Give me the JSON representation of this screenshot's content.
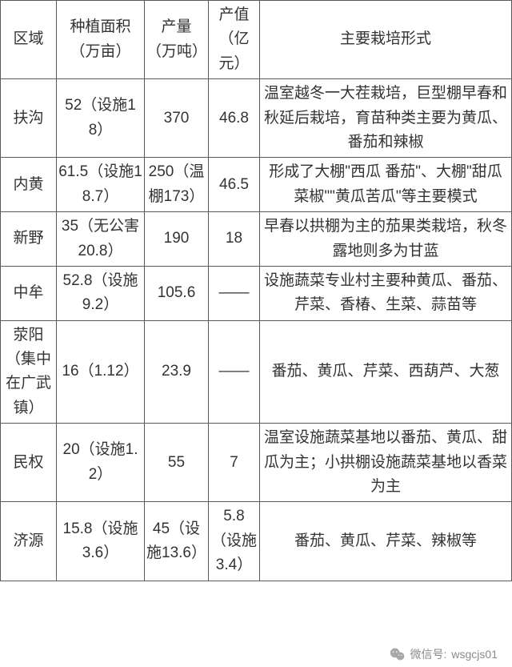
{
  "table": {
    "headers": {
      "region": "区域",
      "area": "种植面积（万亩）",
      "yield": "产量（万吨）",
      "value": "产值（亿元）",
      "form": "主要栽培形式"
    },
    "rows": [
      {
        "region": "扶沟",
        "area": "52（设施18）",
        "yield": "370",
        "value": "46.8",
        "form": "温室越冬一大茬栽培，巨型棚早春和秋延后栽培，育苗种类主要为黄瓜、番茄和辣椒"
      },
      {
        "region": "内黄",
        "area": "61.5（设施18.7）",
        "yield": "250（温棚173）",
        "value": "46.5",
        "form": "形成了大棚\"西瓜 番茄\"、大棚\"甜瓜菜椒\"\"黄瓜苦瓜\"等主要模式"
      },
      {
        "region": "新野",
        "area": "35（无公害20.8）",
        "yield": "190",
        "value": "18",
        "form": "早春以拱棚为主的茄果类栽培，秋冬露地则多为甘蓝"
      },
      {
        "region": "中牟",
        "area": "52.8（设施9.2）",
        "yield": "105.6",
        "value": "——",
        "form": "设施蔬菜专业村主要种黄瓜、番茄、芹菜、香椿、生菜、蒜苗等"
      },
      {
        "region": "荥阳（集中在广武镇）",
        "area": "16（1.12）",
        "yield": "23.9",
        "value": "——",
        "form": "番茄、黄瓜、芹菜、西葫芦、大葱"
      },
      {
        "region": "民权",
        "area": "20（设施1.2）",
        "yield": "55",
        "value": "7",
        "form": "温室设施蔬菜基地以番茄、黄瓜、甜瓜为主；小拱棚设施蔬菜基地以香菜为主"
      },
      {
        "region": "济源",
        "area": "15.8（设施3.6）",
        "yield": "45（设施13.6）",
        "value": "5.8（设施3.4）",
        "form": "番茄、黄瓜、芹菜、辣椒等"
      }
    ]
  },
  "footer": {
    "prefix": "微信号:",
    "account": "wsgcjs01"
  },
  "colors": {
    "border": "#5a5a5a",
    "text": "#333333",
    "footer_text": "#8a8a8a",
    "wechat_icon": "#a7a7a7",
    "background": "#ffffff"
  }
}
